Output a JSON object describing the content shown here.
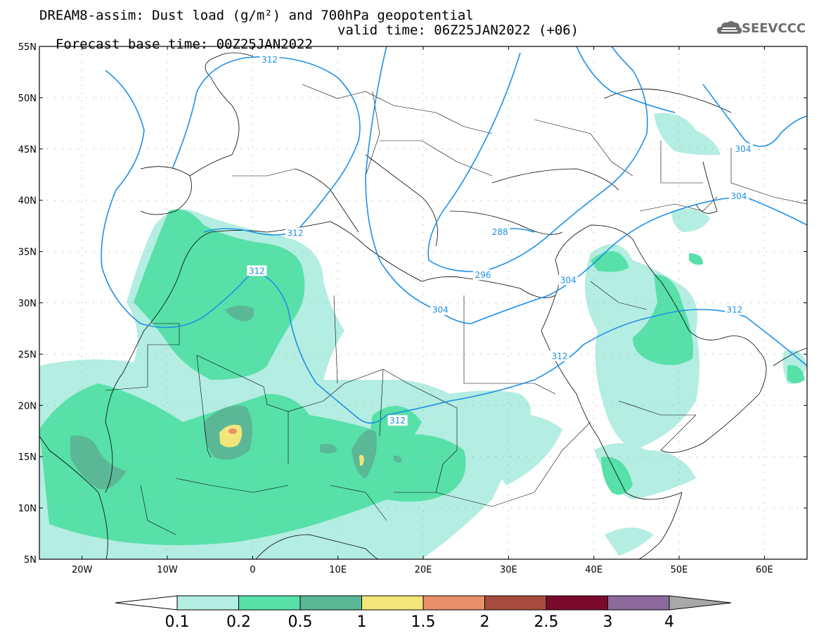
{
  "title": {
    "line1": "DREAM8-assim: Dust load (g/m²) and 700hPa geopotential",
    "line2_left": "Forecast base time: 00Z25JAN2022",
    "line2_right": "valid time: 06Z25JAN2022 (+06)"
  },
  "logo": {
    "text": "SEEVCCC",
    "icon": "cloud-logo-icon"
  },
  "axes": {
    "lon_ticks": [
      "20W",
      "10W",
      "0",
      "10E",
      "20E",
      "30E",
      "40E",
      "50E",
      "60E"
    ],
    "lat_ticks": [
      "55N",
      "50N",
      "45N",
      "40N",
      "35N",
      "30N",
      "25N",
      "20N",
      "15N",
      "10N",
      "5N"
    ],
    "lon_range": [
      -25,
      65
    ],
    "lat_range": [
      5,
      55
    ]
  },
  "contours": {
    "color": "#1e90e6",
    "labels": [
      {
        "text": "312",
        "lon": 2,
        "lat": 53.7
      },
      {
        "text": "312",
        "lon": 5,
        "lat": 36.8
      },
      {
        "text": "312",
        "lon": 0.5,
        "lat": 33.1
      },
      {
        "text": "304",
        "lon": 22,
        "lat": 29.3
      },
      {
        "text": "296",
        "lon": 27,
        "lat": 32.7
      },
      {
        "text": "288",
        "lon": 29,
        "lat": 36.9
      },
      {
        "text": "304",
        "lon": 37,
        "lat": 32.2
      },
      {
        "text": "312",
        "lon": 36,
        "lat": 24.8
      },
      {
        "text": "312",
        "lon": 17,
        "lat": 18.5
      },
      {
        "text": "304",
        "lon": 57,
        "lat": 40.4
      },
      {
        "text": "312",
        "lon": 56.5,
        "lat": 29.3
      },
      {
        "text": "304",
        "lon": 57.5,
        "lat": 45
      }
    ]
  },
  "colorbar": {
    "levels": [
      "0.1",
      "0.2",
      "0.5",
      "1",
      "1.5",
      "2",
      "2.5",
      "3",
      "4"
    ],
    "colors": [
      "#ffffff",
      "#b4ede2",
      "#57e0a8",
      "#5ab896",
      "#f2e67a",
      "#e8906a",
      "#a64b3e",
      "#7a0b2c",
      "#8c6a9c",
      "#a8a8a8"
    ]
  }
}
